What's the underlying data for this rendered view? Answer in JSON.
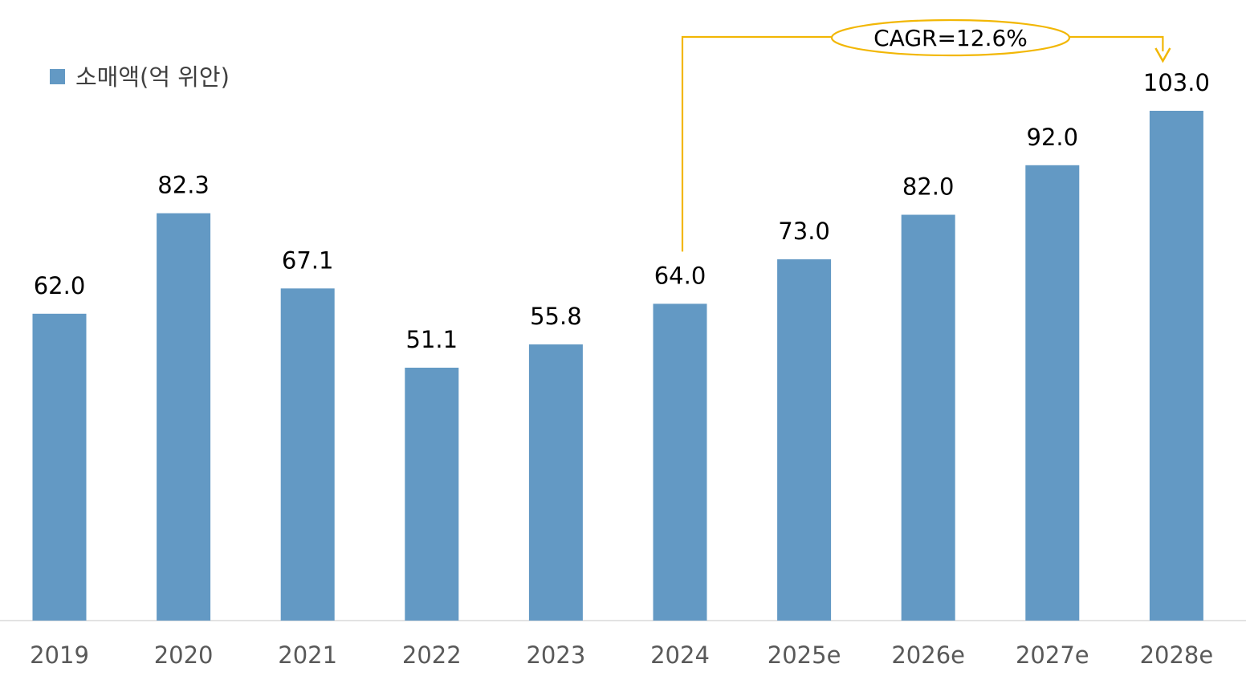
{
  "chart_data": {
    "type": "bar",
    "title": "",
    "xlabel": "",
    "ylabel": "",
    "categories": [
      "2019",
      "2020",
      "2021",
      "2022",
      "2023",
      "2024",
      "2025e",
      "2026e",
      "2027e",
      "2028e"
    ],
    "series": [
      {
        "name": "소매액(억 위안)",
        "values": [
          62.0,
          82.3,
          67.1,
          51.1,
          55.8,
          64.0,
          73.0,
          82.0,
          92.0,
          103.0
        ],
        "labels": [
          "62.0",
          "82.3",
          "67.1",
          "51.1",
          "55.8",
          "64.0",
          "73.0",
          "82.0",
          "92.0",
          "103.0"
        ]
      }
    ],
    "ylim": [
      0,
      124
    ],
    "grid": false,
    "legend": {
      "label": "소매액(억 위안)",
      "position": "top-left"
    },
    "annotation": {
      "text": "CAGR=12.6%",
      "from": "2024",
      "to": "2028e"
    },
    "colors": {
      "bar": "#6399c4",
      "annotation": "#f2b705",
      "axis": "#d9d9d9",
      "tick_text": "#595959",
      "label_text": "#000000"
    }
  }
}
